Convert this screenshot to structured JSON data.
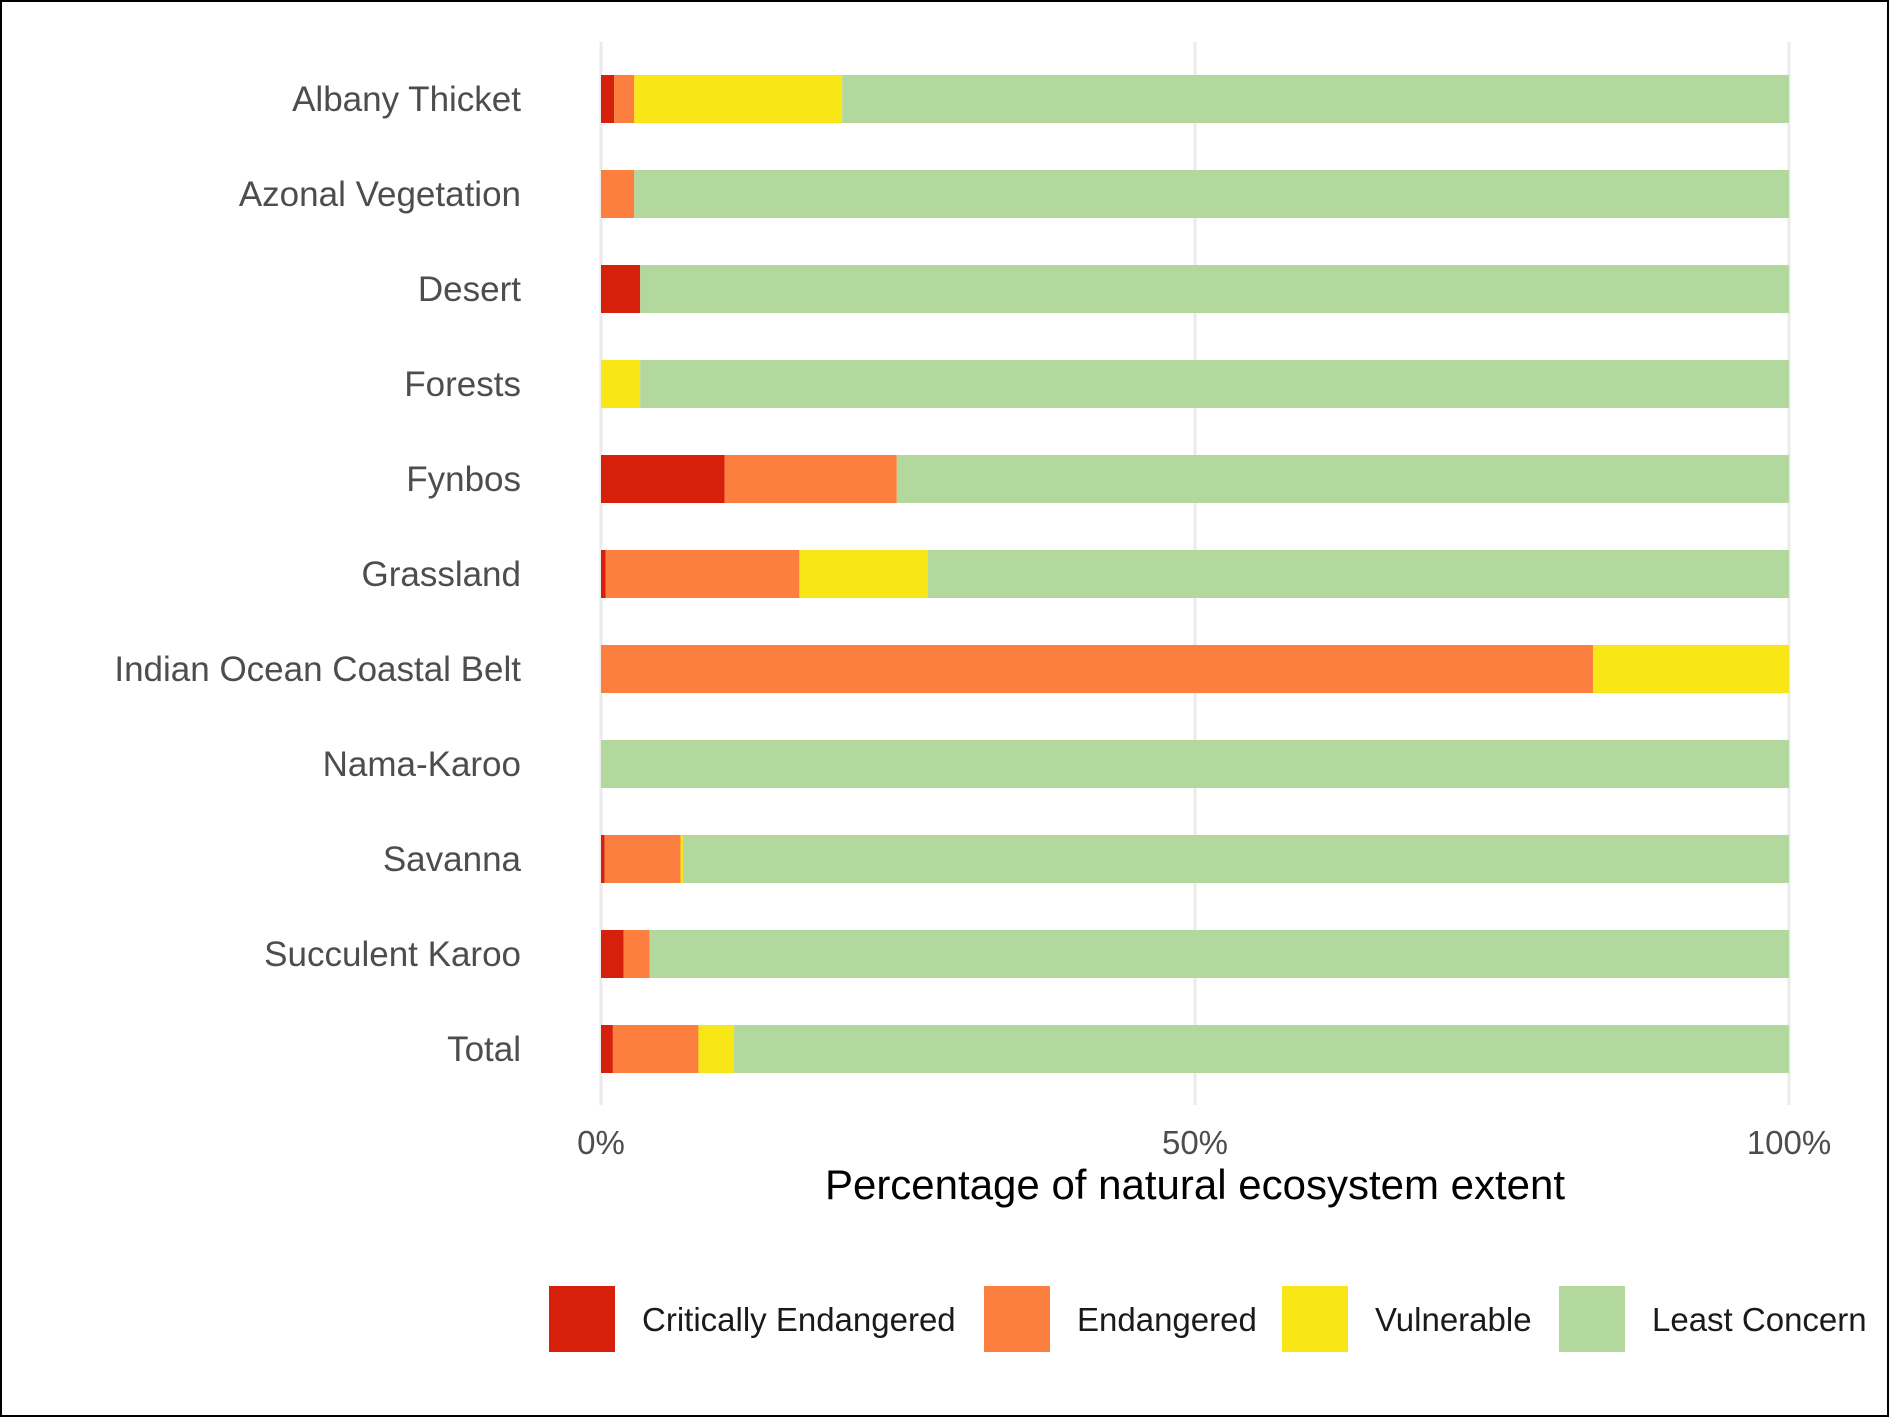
{
  "chart_data": {
    "type": "bar",
    "orientation": "horizontal",
    "stacked": true,
    "title": "",
    "xlabel": "Percentage of natural ecosystem extent",
    "ylabel": "",
    "xlim": [
      0,
      100
    ],
    "x_ticks": [
      {
        "value": 0,
        "label": "0%"
      },
      {
        "value": 50,
        "label": "50%"
      },
      {
        "value": 100,
        "label": "100%"
      }
    ],
    "grid": "vertical major gridlines",
    "legend_position": "bottom",
    "categories": [
      "Albany Thicket",
      "Azonal Vegetation",
      "Desert",
      "Forests",
      "Fynbos",
      "Grassland",
      "Indian Ocean Coastal Belt",
      "Nama-Karoo",
      "Savanna",
      "Succulent Karoo",
      "Total"
    ],
    "series": [
      {
        "name": "Critically Endangered",
        "color": "#d7200b",
        "values": [
          1.1,
          0,
          3.3,
          0,
          10.4,
          0.4,
          0,
          0,
          0.3,
          1.9,
          1.0
        ]
      },
      {
        "name": "Endangered",
        "color": "#fc7f3f",
        "values": [
          1.7,
          2.8,
          0,
          0,
          14.5,
          16.3,
          83.5,
          0,
          6.4,
          2.2,
          7.2
        ]
      },
      {
        "name": "Vulnerable",
        "color": "#f8e617",
        "values": [
          17.5,
          0,
          0,
          3.3,
          0,
          10.8,
          16.5,
          0,
          0.2,
          0,
          3.0
        ]
      },
      {
        "name": "Least Concern",
        "color": "#b3d89e",
        "values": [
          79.7,
          97.2,
          96.7,
          96.7,
          75.1,
          72.5,
          0,
          100,
          93.1,
          95.9,
          88.8
        ]
      }
    ]
  }
}
